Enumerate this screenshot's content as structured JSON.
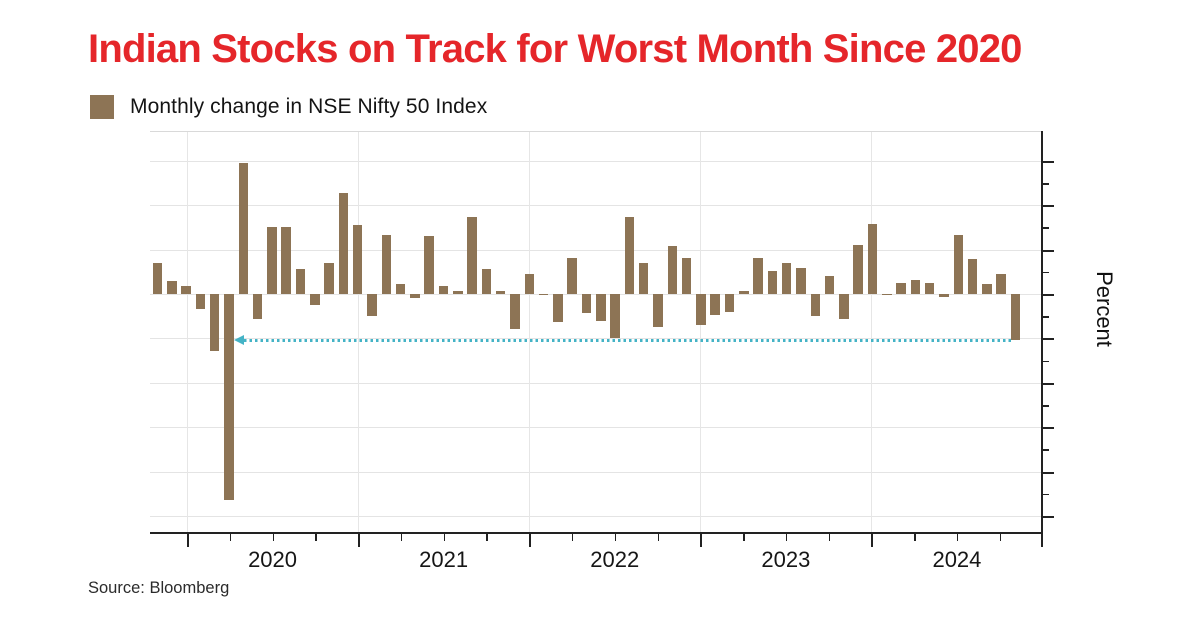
{
  "title": {
    "text": "Indian Stocks on Track for Worst Month Since 2020",
    "color": "#e5262a"
  },
  "legend": {
    "label": "Monthly change in NSE Nifty 50 Index",
    "swatch_color": "#8d7455"
  },
  "y_axis": {
    "label": "Percent",
    "tick_values": [
      15,
      10,
      5,
      0,
      -5,
      -10,
      -15,
      -20,
      -25
    ],
    "tick_labels_visible": false
  },
  "x_axis": {
    "year_labels": [
      "2020",
      "2021",
      "2022",
      "2023",
      "2024"
    ],
    "minor_tick_interval_months": 3
  },
  "annotation": {
    "dotted_line_value": -5.2,
    "color": "#44b3c6",
    "arrow_direction": "left"
  },
  "source": "Source: Bloomberg",
  "colors": {
    "bar": "#8d7455",
    "grid": "#e4e4e4",
    "axis": "#222222",
    "background": "#ffffff",
    "title_red": "#e5262a",
    "annotation_teal": "#44b3c6"
  },
  "chart_data": {
    "type": "bar",
    "title": "Monthly change in NSE Nifty 50 Index",
    "xlabel": "",
    "ylabel": "Percent",
    "ylim": [
      -26.9,
      18.4
    ],
    "grid": true,
    "legend_position": "top-left-above-chart",
    "x": [
      "2019-10",
      "2019-11",
      "2019-12",
      "2020-01",
      "2020-02",
      "2020-03",
      "2020-04",
      "2020-05",
      "2020-06",
      "2020-07",
      "2020-08",
      "2020-09",
      "2020-10",
      "2020-11",
      "2020-12",
      "2021-01",
      "2021-02",
      "2021-03",
      "2021-04",
      "2021-05",
      "2021-06",
      "2021-07",
      "2021-08",
      "2021-09",
      "2021-10",
      "2021-11",
      "2021-12",
      "2022-01",
      "2022-02",
      "2022-03",
      "2022-04",
      "2022-05",
      "2022-06",
      "2022-07",
      "2022-08",
      "2022-09",
      "2022-10",
      "2022-11",
      "2022-12",
      "2023-01",
      "2023-02",
      "2023-03",
      "2023-04",
      "2023-05",
      "2023-06",
      "2023-07",
      "2023-08",
      "2023-09",
      "2023-10",
      "2023-11",
      "2023-12",
      "2024-01",
      "2024-02",
      "2024-03",
      "2024-04",
      "2024-05",
      "2024-06",
      "2024-07",
      "2024-08",
      "2024-09",
      "2024-10"
    ],
    "values": [
      3.5,
      1.5,
      0.9,
      -1.7,
      -6.4,
      -23.2,
      14.7,
      -2.8,
      7.5,
      7.5,
      2.8,
      -1.2,
      3.5,
      11.4,
      7.8,
      -2.5,
      6.6,
      1.1,
      -0.4,
      6.5,
      0.9,
      0.3,
      8.7,
      2.8,
      0.3,
      -3.9,
      2.2,
      -0.1,
      -3.1,
      4.0,
      -2.1,
      -3.0,
      -4.9,
      8.7,
      3.5,
      -3.7,
      5.4,
      4.1,
      -3.5,
      -2.4,
      -2.0,
      0.3,
      4.1,
      2.6,
      3.5,
      2.9,
      -2.5,
      2.0,
      -2.8,
      5.5,
      7.9,
      0.0,
      1.2,
      1.6,
      1.2,
      -0.3,
      6.6,
      3.9,
      1.1,
      2.3,
      -5.2
    ]
  }
}
